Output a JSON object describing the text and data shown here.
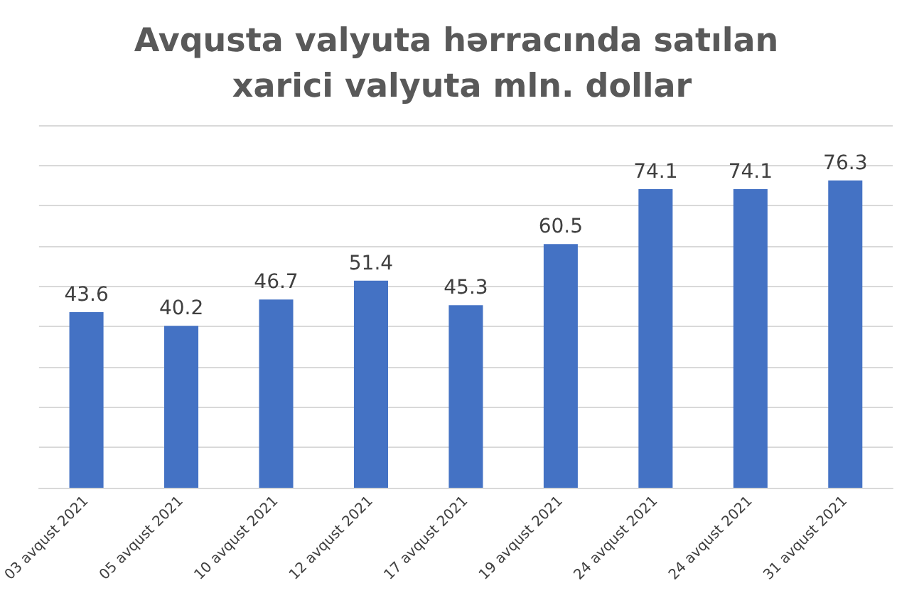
{
  "chart_data": {
    "type": "bar",
    "title": "Avqusta valyuta hərracında satılan xarici valyuta mln. dollar",
    "categories": [
      "03 avqust 2021",
      "05 avqust 2021",
      "10 avqust 2021",
      "12 avqust 2021",
      "17 avqust 2021",
      "19 avqust 2021",
      "24 avqust 2021",
      "24 avqust 2021",
      "31 avqust 2021"
    ],
    "values": [
      43.6,
      40.2,
      46.7,
      51.4,
      45.3,
      60.5,
      74.1,
      74.1,
      76.3
    ],
    "color": "#4472c4",
    "ylim": [
      0,
      90
    ],
    "yticks": [
      0,
      10,
      20,
      30,
      40,
      50,
      60,
      70,
      80,
      90
    ],
    "grid": "y",
    "tick_labels": "x",
    "data_labels": true
  }
}
